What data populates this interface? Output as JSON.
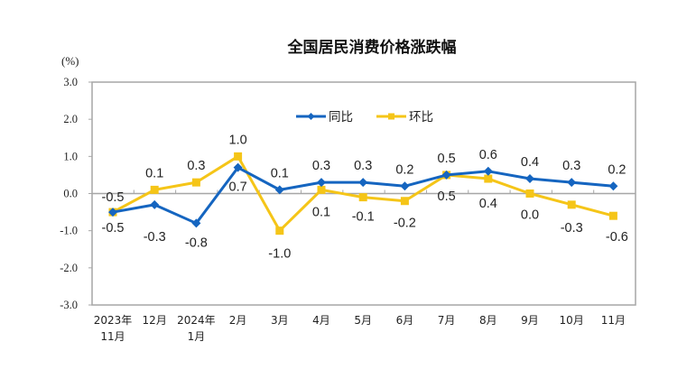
{
  "chart_data": {
    "type": "line",
    "title": "全国居民消费价格涨跌幅",
    "ylabel": "(%)",
    "xlabel": "",
    "ylim": [
      -3.0,
      3.0
    ],
    "yticks": [
      "3.0",
      "2.0",
      "1.0",
      "0.0",
      "-1.0",
      "-2.0",
      "-3.0"
    ],
    "ytick_values": [
      3,
      2,
      1,
      0,
      -1,
      -2,
      -3
    ],
    "grid": false,
    "legend_position": "top-center",
    "categories": [
      [
        "2023年",
        "11月"
      ],
      [
        "12月"
      ],
      [
        "2024年",
        "1月"
      ],
      [
        "2月"
      ],
      [
        "3月"
      ],
      [
        "4月"
      ],
      [
        "5月"
      ],
      [
        "6月"
      ],
      [
        "7月"
      ],
      [
        "8月"
      ],
      [
        "9月"
      ],
      [
        "10月"
      ],
      [
        "11月"
      ]
    ],
    "series": [
      {
        "name": "同比",
        "color": "#1565C0",
        "marker": "diamond",
        "values": [
          -0.5,
          -0.3,
          -0.8,
          0.7,
          0.1,
          0.3,
          0.3,
          0.2,
          0.5,
          0.6,
          0.4,
          0.3,
          0.2
        ],
        "labels": [
          "-0.5",
          "-0.3",
          "-0.8",
          "0.7",
          "0.1",
          "0.3",
          "0.3",
          "0.2",
          "0.5",
          "0.6",
          "0.4",
          "0.3",
          "0.2"
        ]
      },
      {
        "name": "环比",
        "color": "#F5C518",
        "marker": "square",
        "values": [
          -0.5,
          0.1,
          0.3,
          1.0,
          -1.0,
          0.1,
          -0.1,
          -0.2,
          0.5,
          0.4,
          0.0,
          -0.3,
          -0.6
        ],
        "labels": [
          "-0.5",
          "0.1",
          "0.3",
          "1.0",
          "-1.0",
          "0.1",
          "-0.1",
          "-0.2",
          "0.5",
          "0.4",
          "0.0",
          "-0.3",
          "-0.6"
        ]
      }
    ]
  }
}
